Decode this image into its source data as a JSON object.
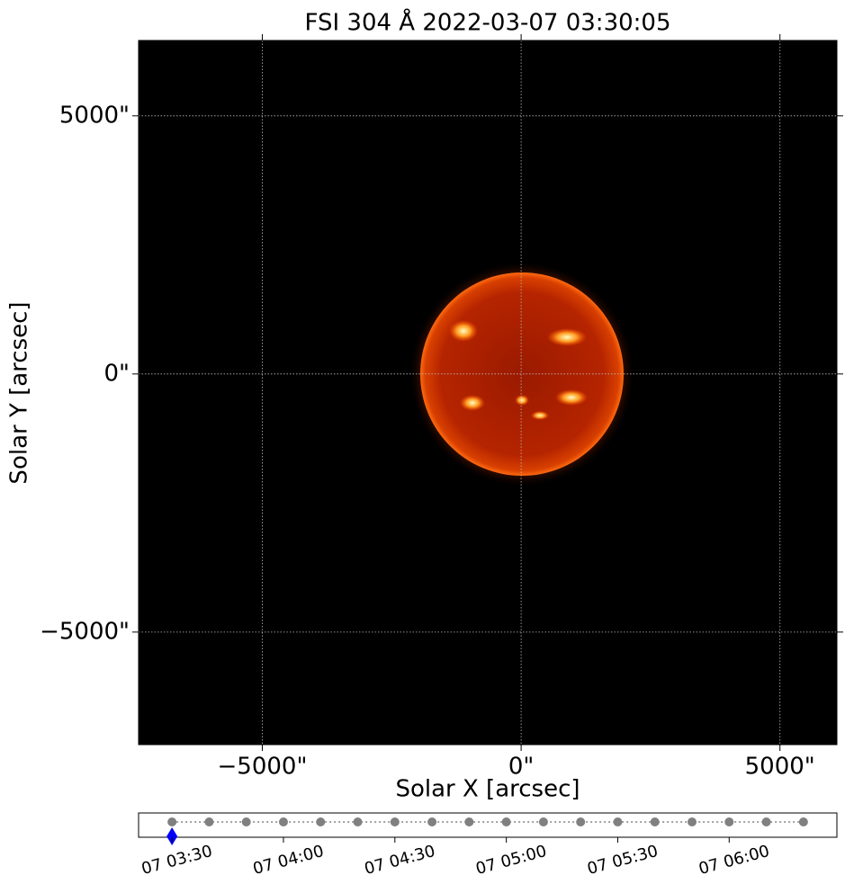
{
  "chart_data": [
    {
      "type": "image",
      "title": "FSI 304 Å 2022-03-07 03:30:05",
      "xlabel": "Solar X [arcsec]",
      "ylabel": "Solar Y [arcsec]",
      "xlim": [
        -7390,
        6100
      ],
      "ylim": [
        -7180,
        6460
      ],
      "xticks": [
        {
          "value": -5000,
          "label": "−5000\""
        },
        {
          "value": 0,
          "label": "0\""
        },
        {
          "value": 5000,
          "label": "5000\""
        }
      ],
      "yticks": [
        {
          "value": -5000,
          "label": "−5000\""
        },
        {
          "value": 0,
          "label": "0\""
        },
        {
          "value": 5000,
          "label": "5000\""
        }
      ],
      "grid": true
    },
    {
      "type": "timeline",
      "x": [
        "07 03:30",
        "07 03:40",
        "07 03:50",
        "07 04:00",
        "07 04:10",
        "07 04:20",
        "07 04:30",
        "07 04:40",
        "07 04:50",
        "07 05:00",
        "07 05:10",
        "07 05:20",
        "07 05:30",
        "07 05:40",
        "07 05:50",
        "07 06:00",
        "07 06:10",
        "07 06:20"
      ],
      "color": "#808080",
      "current": "07 03:30",
      "current_color": "#0000ff",
      "xlim": [
        "07 03:21",
        "07 06:29"
      ],
      "xticks": [
        "07 03:30",
        "07 04:00",
        "07 04:30",
        "07 05:00",
        "07 05:30",
        "07 06:00"
      ]
    }
  ]
}
